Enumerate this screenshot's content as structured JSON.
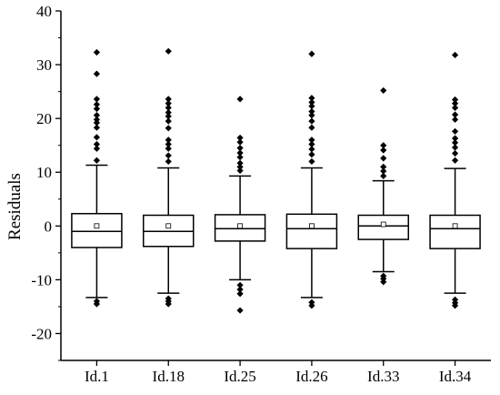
{
  "chart_data": {
    "type": "box",
    "ylabel": "Residuals",
    "xlabel": "",
    "ylim": [
      -25,
      40
    ],
    "yticks": [
      -20,
      -10,
      0,
      10,
      20,
      30,
      40
    ],
    "ytick_labels": [
      "-20",
      "-10",
      "0",
      "10",
      "20",
      "30",
      "40"
    ],
    "grid": false,
    "categories": [
      "Id.1",
      "Id.18",
      "Id.25",
      "Id.26",
      "Id.33",
      "Id.34"
    ],
    "boxes": [
      {
        "q1": -4.0,
        "median": -1.0,
        "q3": 2.3,
        "whisker_low": -13.3,
        "whisker_high": 11.3,
        "mean": 0.0,
        "outliers": [
          32.3,
          28.3,
          23.6,
          22.6,
          21.8,
          20.6,
          19.8,
          19.2,
          18.3,
          16.5,
          15.2,
          14.4,
          12.2,
          -14.0,
          -14.5
        ]
      },
      {
        "q1": -3.8,
        "median": -1.0,
        "q3": 2.0,
        "whisker_low": -12.5,
        "whisker_high": 10.8,
        "mean": 0.0,
        "outliers": [
          32.5,
          23.6,
          22.8,
          22.0,
          21.1,
          20.4,
          19.5,
          18.2,
          16.0,
          15.2,
          14.4,
          13.1,
          12.0,
          -13.5,
          -14.0,
          -14.5
        ]
      },
      {
        "q1": -2.8,
        "median": -0.5,
        "q3": 2.1,
        "whisker_low": -10.0,
        "whisker_high": 9.3,
        "mean": 0.0,
        "outliers": [
          23.6,
          16.4,
          15.6,
          14.5,
          13.6,
          12.8,
          11.7,
          11.0,
          10.3,
          -11.0,
          -11.8,
          -12.6,
          -15.7
        ]
      },
      {
        "q1": -4.2,
        "median": -0.5,
        "q3": 2.2,
        "whisker_low": -13.3,
        "whisker_high": 10.8,
        "mean": 0.0,
        "outliers": [
          32.0,
          23.8,
          23.0,
          22.3,
          21.3,
          20.6,
          19.5,
          18.3,
          16.0,
          15.2,
          14.3,
          13.3,
          12.0,
          -14.2,
          -14.8
        ]
      },
      {
        "q1": -2.5,
        "median": 0.0,
        "q3": 2.0,
        "whisker_low": -8.5,
        "whisker_high": 8.4,
        "mean": 0.3,
        "outliers": [
          25.2,
          15.0,
          14.1,
          12.6,
          11.0,
          10.2,
          9.3,
          -9.3,
          -9.8,
          -10.4
        ]
      },
      {
        "q1": -4.2,
        "median": -0.5,
        "q3": 2.0,
        "whisker_low": -12.5,
        "whisker_high": 10.7,
        "mean": 0.0,
        "outliers": [
          31.8,
          23.5,
          22.8,
          22.0,
          20.7,
          19.8,
          17.6,
          16.3,
          15.5,
          14.6,
          13.5,
          12.2,
          -13.7,
          -14.3,
          -14.8
        ]
      }
    ]
  }
}
